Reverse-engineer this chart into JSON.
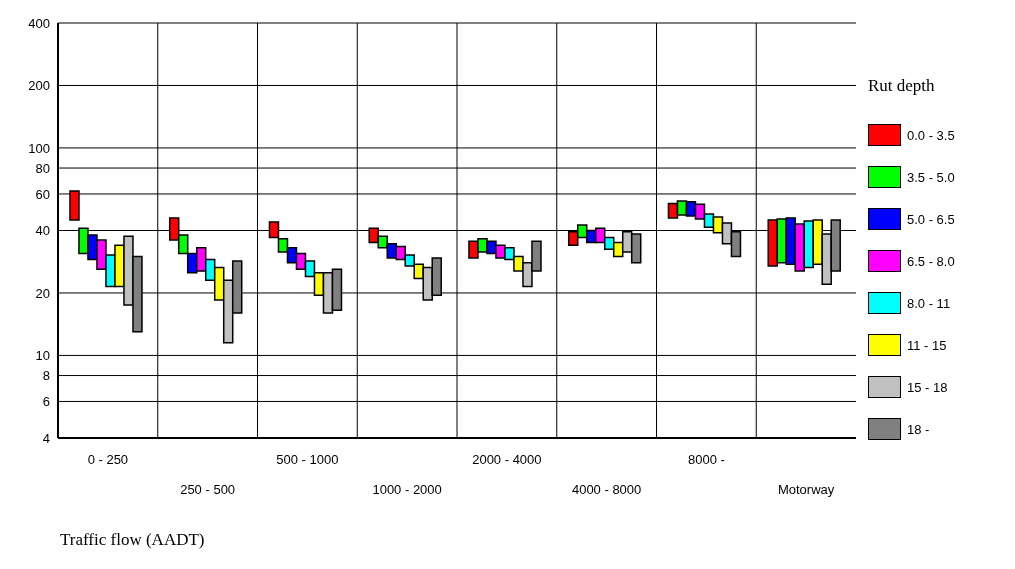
{
  "chart_data": {
    "type": "bar",
    "xlabel": "Traffic flow (AADT)",
    "legend_title": "Rut depth",
    "categories": [
      "0 - 250",
      "250 - 500",
      "500 - 1000",
      "1000 - 2000",
      "2000 - 4000",
      "4000 - 8000",
      "8000 -",
      "Motorway"
    ],
    "log": true,
    "ylim": [
      4,
      400
    ],
    "yticks": [
      4,
      6,
      8,
      10,
      20,
      40,
      60,
      80,
      100,
      200,
      400
    ],
    "grid": true,
    "legend": "right",
    "series": [
      {
        "name": "0.0 - 3.5",
        "color": "#ff0000",
        "base": [
          45,
          36,
          37,
          35,
          29.5,
          34,
          46,
          27
        ],
        "values": [
          17,
          10,
          7,
          6,
          6,
          5.5,
          8,
          18
        ]
      },
      {
        "name": "3.5 - 5.0",
        "color": "#00ff00",
        "base": [
          31,
          31,
          31.5,
          33,
          31.5,
          37,
          47.5,
          28
        ],
        "values": [
          10,
          7,
          5,
          4.5,
          5,
          5.5,
          8,
          17.5
        ]
      },
      {
        "name": "5.0 - 6.5",
        "color": "#0000ff",
        "base": [
          29,
          25,
          28,
          29.5,
          31,
          35,
          47,
          27.5
        ],
        "values": [
          9,
          6,
          5,
          5,
          4.5,
          5,
          8,
          18.5
        ]
      },
      {
        "name": "6.5 - 8.0",
        "color": "#ff00ff",
        "base": [
          26,
          25.5,
          26,
          29,
          29.5,
          35,
          45.5,
          25.5
        ],
        "values": [
          10,
          7.5,
          5,
          4.5,
          4.5,
          6,
          8,
          17.5
        ]
      },
      {
        "name": "8.0 - 11",
        "color": "#00ffff",
        "base": [
          21.5,
          23,
          24,
          27,
          29,
          32.5,
          41.5,
          26.5
        ],
        "values": [
          9,
          6,
          4.5,
          3.5,
          4,
          4.5,
          6.5,
          18
        ]
      },
      {
        "name": "11 - 15",
        "color": "#ffff00",
        "base": [
          21.5,
          18.5,
          19.5,
          23.5,
          25.5,
          30,
          39,
          27.5
        ],
        "values": [
          12.5,
          8,
          5.5,
          4,
          4.5,
          5,
          7.5,
          17.5
        ]
      },
      {
        "name": "15 - 18",
        "color": "#c0c0c0",
        "base": [
          17.5,
          11.5,
          16,
          18.5,
          21.5,
          31.5,
          34.5,
          22
        ],
        "values": [
          20,
          11.5,
          9,
          8,
          6.5,
          8,
          9,
          16.5
        ]
      },
      {
        "name": "18 -",
        "color": "#808080",
        "base": [
          13,
          16,
          16.5,
          19.5,
          25.5,
          28,
          30,
          25.5
        ],
        "values": [
          17,
          12.5,
          9.5,
          10,
          10,
          10.5,
          9.5,
          19.5
        ]
      }
    ]
  }
}
